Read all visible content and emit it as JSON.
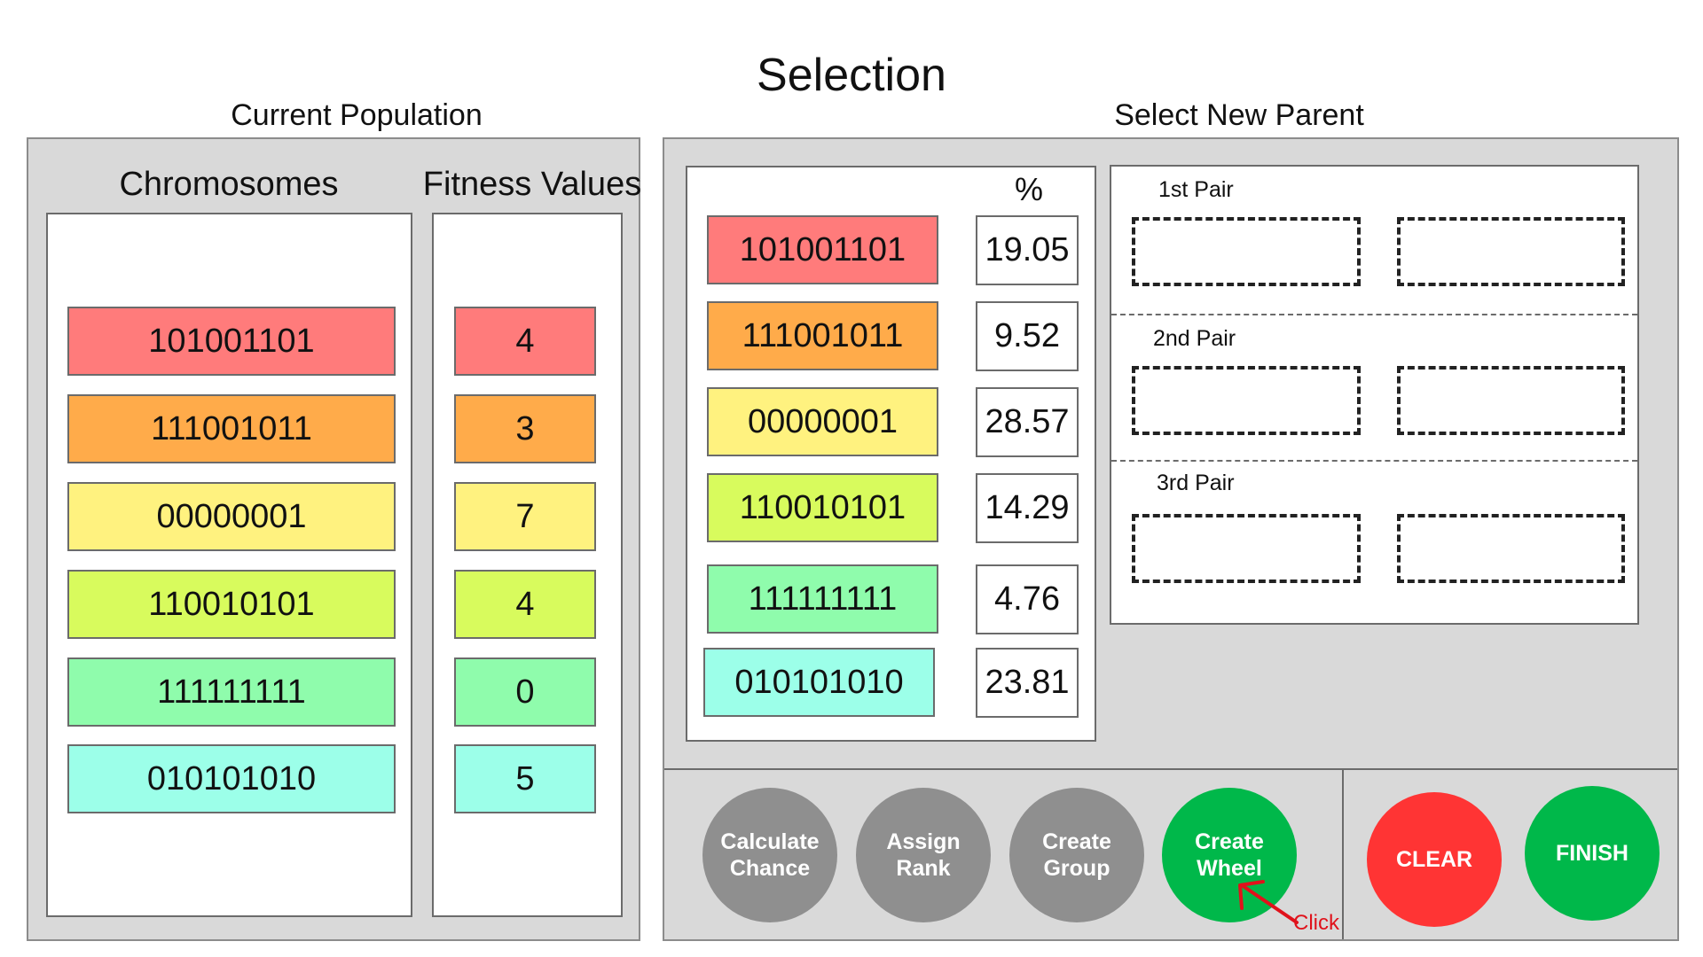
{
  "page_title": "Selection",
  "current_population": {
    "title": "Current Population",
    "chromosomes_header": "Chromosomes",
    "fitness_header": "Fitness Values",
    "rows": [
      {
        "chromosome": "101001101",
        "fitness": "4",
        "color": "#ff7b7b"
      },
      {
        "chromosome": "111001011",
        "fitness": "3",
        "color": "#ffab4a"
      },
      {
        "chromosome": "00000001",
        "fitness": "7",
        "color": "#fff27f"
      },
      {
        "chromosome": "110010101",
        "fitness": "4",
        "color": "#d8fb5d"
      },
      {
        "chromosome": "111111111",
        "fitness": "0",
        "color": "#8ffcac"
      },
      {
        "chromosome": "010101010",
        "fitness": "5",
        "color": "#9cffe9"
      }
    ]
  },
  "select_new_parent": {
    "title": "Select New Parent",
    "percent_header": "%",
    "rows": [
      {
        "chromosome": "101001101",
        "percent": "19.05",
        "color": "#ff7b7b"
      },
      {
        "chromosome": "111001011",
        "percent": "9.52",
        "color": "#ffab4a"
      },
      {
        "chromosome": "00000001",
        "percent": "28.57",
        "color": "#fff27f"
      },
      {
        "chromosome": "110010101",
        "percent": "14.29",
        "color": "#d8fb5d"
      },
      {
        "chromosome": "111111111",
        "percent": "4.76",
        "color": "#8ffcac"
      },
      {
        "chromosome": "010101010",
        "percent": "23.81",
        "color": "#9cffe9"
      }
    ],
    "pairs": [
      {
        "label": "1st Pair"
      },
      {
        "label": "2nd Pair"
      },
      {
        "label": "3rd Pair"
      }
    ]
  },
  "buttons": {
    "calculate_chance": "Calculate\nChance",
    "assign_rank": "Assign\nRank",
    "create_group": "Create\nGroup",
    "create_wheel": "Create\nWheel",
    "clear": "CLEAR",
    "finish": "FINISH"
  },
  "annotation": {
    "click_label": "Click"
  },
  "colors": {
    "gray_button": "#8f8f8f",
    "green_button": "#00b84a",
    "red_button": "#ff3434",
    "annotation_red": "#e0121b"
  }
}
